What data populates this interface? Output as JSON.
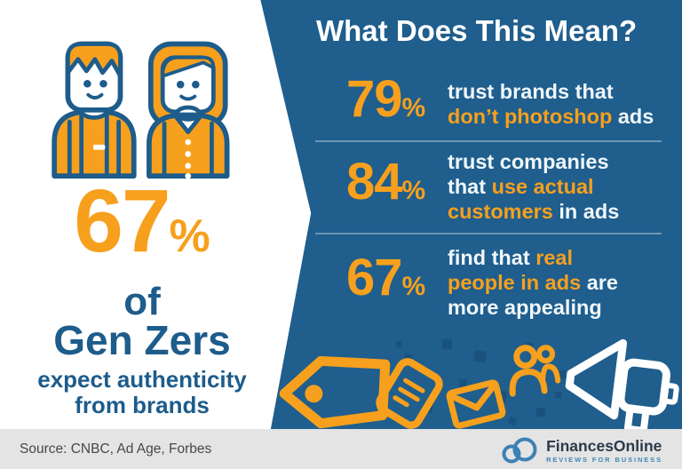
{
  "palette": {
    "blue": "#1f5e8d",
    "orange": "#f7a01d",
    "heading_white": "#ffffff",
    "body_white": "#eff6fa",
    "left_text_blue": "#1d5c8b",
    "outline_blue": "#1d5c8b",
    "divider": "rgba(255,255,255,0.35)",
    "confetti": "#1a527d",
    "footer_bg": "#e4e4e4",
    "footer_text": "#474747",
    "logo_navy": "#2b3b4d",
    "logo_blue": "#3d86b8",
    "logo_cloud": "#3c81b5"
  },
  "left_panel": {
    "illustration": "two-people-icon",
    "stat_value": "67",
    "stat_unit": "%",
    "line_of": "of",
    "line_group": "Gen Zers",
    "desc_line1": "expect authenticity",
    "desc_line2": "from brands"
  },
  "right_panel": {
    "heading": "What Does This Mean?",
    "stats": [
      {
        "value": "79",
        "unit": "%",
        "lines": [
          [
            {
              "t": "trust brands that",
              "c": "w"
            }
          ],
          [
            {
              "t": "don’t photoshop",
              "c": "o"
            },
            {
              "t": " ads",
              "c": "w"
            }
          ]
        ]
      },
      {
        "value": "84",
        "unit": "%",
        "lines": [
          [
            {
              "t": "trust companies",
              "c": "w"
            }
          ],
          [
            {
              "t": "that ",
              "c": "w"
            },
            {
              "t": "use actual",
              "c": "o"
            }
          ],
          [
            {
              "t": "customers",
              "c": "o"
            },
            {
              "t": " in ads",
              "c": "w"
            }
          ]
        ]
      },
      {
        "value": "67",
        "unit": "%",
        "lines": [
          [
            {
              "t": "find that ",
              "c": "w"
            },
            {
              "t": "real",
              "c": "o"
            }
          ],
          [
            {
              "t": "people in ads",
              "c": "o"
            },
            {
              "t": " are",
              "c": "w"
            }
          ],
          [
            {
              "t": "more appealing",
              "c": "w"
            }
          ]
        ]
      }
    ],
    "decor_icons": [
      "price-tag-icon",
      "document-icon",
      "envelope-icon",
      "people-group-icon",
      "megaphone-icon"
    ]
  },
  "footer": {
    "source": "Source: CNBC, Ad Age, Forbes",
    "brand_name": "FinancesOnline",
    "brand_tagline": "REVIEWS FOR BUSINESS"
  },
  "layout_hints": {
    "stat_row_tops": [
      84,
      168,
      276
    ],
    "divider_tops": [
      158,
      262
    ]
  },
  "confetti_squares": [
    [
      455,
      399,
      9,
      14
    ],
    [
      498,
      382,
      11,
      0
    ],
    [
      534,
      395,
      13,
      9
    ],
    [
      517,
      427,
      9,
      0
    ],
    [
      558,
      440,
      12,
      7
    ],
    [
      604,
      459,
      10,
      0
    ],
    [
      573,
      470,
      8,
      18
    ],
    [
      479,
      456,
      8,
      22
    ],
    [
      628,
      417,
      9,
      0
    ],
    [
      446,
      384,
      7,
      0
    ],
    [
      592,
      386,
      8,
      12
    ],
    [
      625,
      441,
      7,
      0
    ]
  ]
}
